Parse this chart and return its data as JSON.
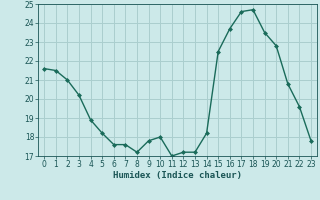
{
  "x": [
    0,
    1,
    2,
    3,
    4,
    5,
    6,
    7,
    8,
    9,
    10,
    11,
    12,
    13,
    14,
    15,
    16,
    17,
    18,
    19,
    20,
    21,
    22,
    23
  ],
  "y": [
    21.6,
    21.5,
    21.0,
    20.2,
    18.9,
    18.2,
    17.6,
    17.6,
    17.2,
    17.8,
    18.0,
    17.0,
    17.2,
    17.2,
    18.2,
    22.5,
    23.7,
    24.6,
    24.7,
    23.5,
    22.8,
    20.8,
    19.6,
    17.8
  ],
  "line_color": "#1a6b5a",
  "marker_color": "#1a6b5a",
  "bg_color": "#cce9e9",
  "grid_color": "#aacece",
  "xlabel": "Humidex (Indice chaleur)",
  "ylim": [
    17,
    25
  ],
  "yticks": [
    17,
    18,
    19,
    20,
    21,
    22,
    23,
    24,
    25
  ],
  "xlim": [
    -0.5,
    23.5
  ],
  "xticks": [
    0,
    1,
    2,
    3,
    4,
    5,
    6,
    7,
    8,
    9,
    10,
    11,
    12,
    13,
    14,
    15,
    16,
    17,
    18,
    19,
    20,
    21,
    22,
    23
  ]
}
